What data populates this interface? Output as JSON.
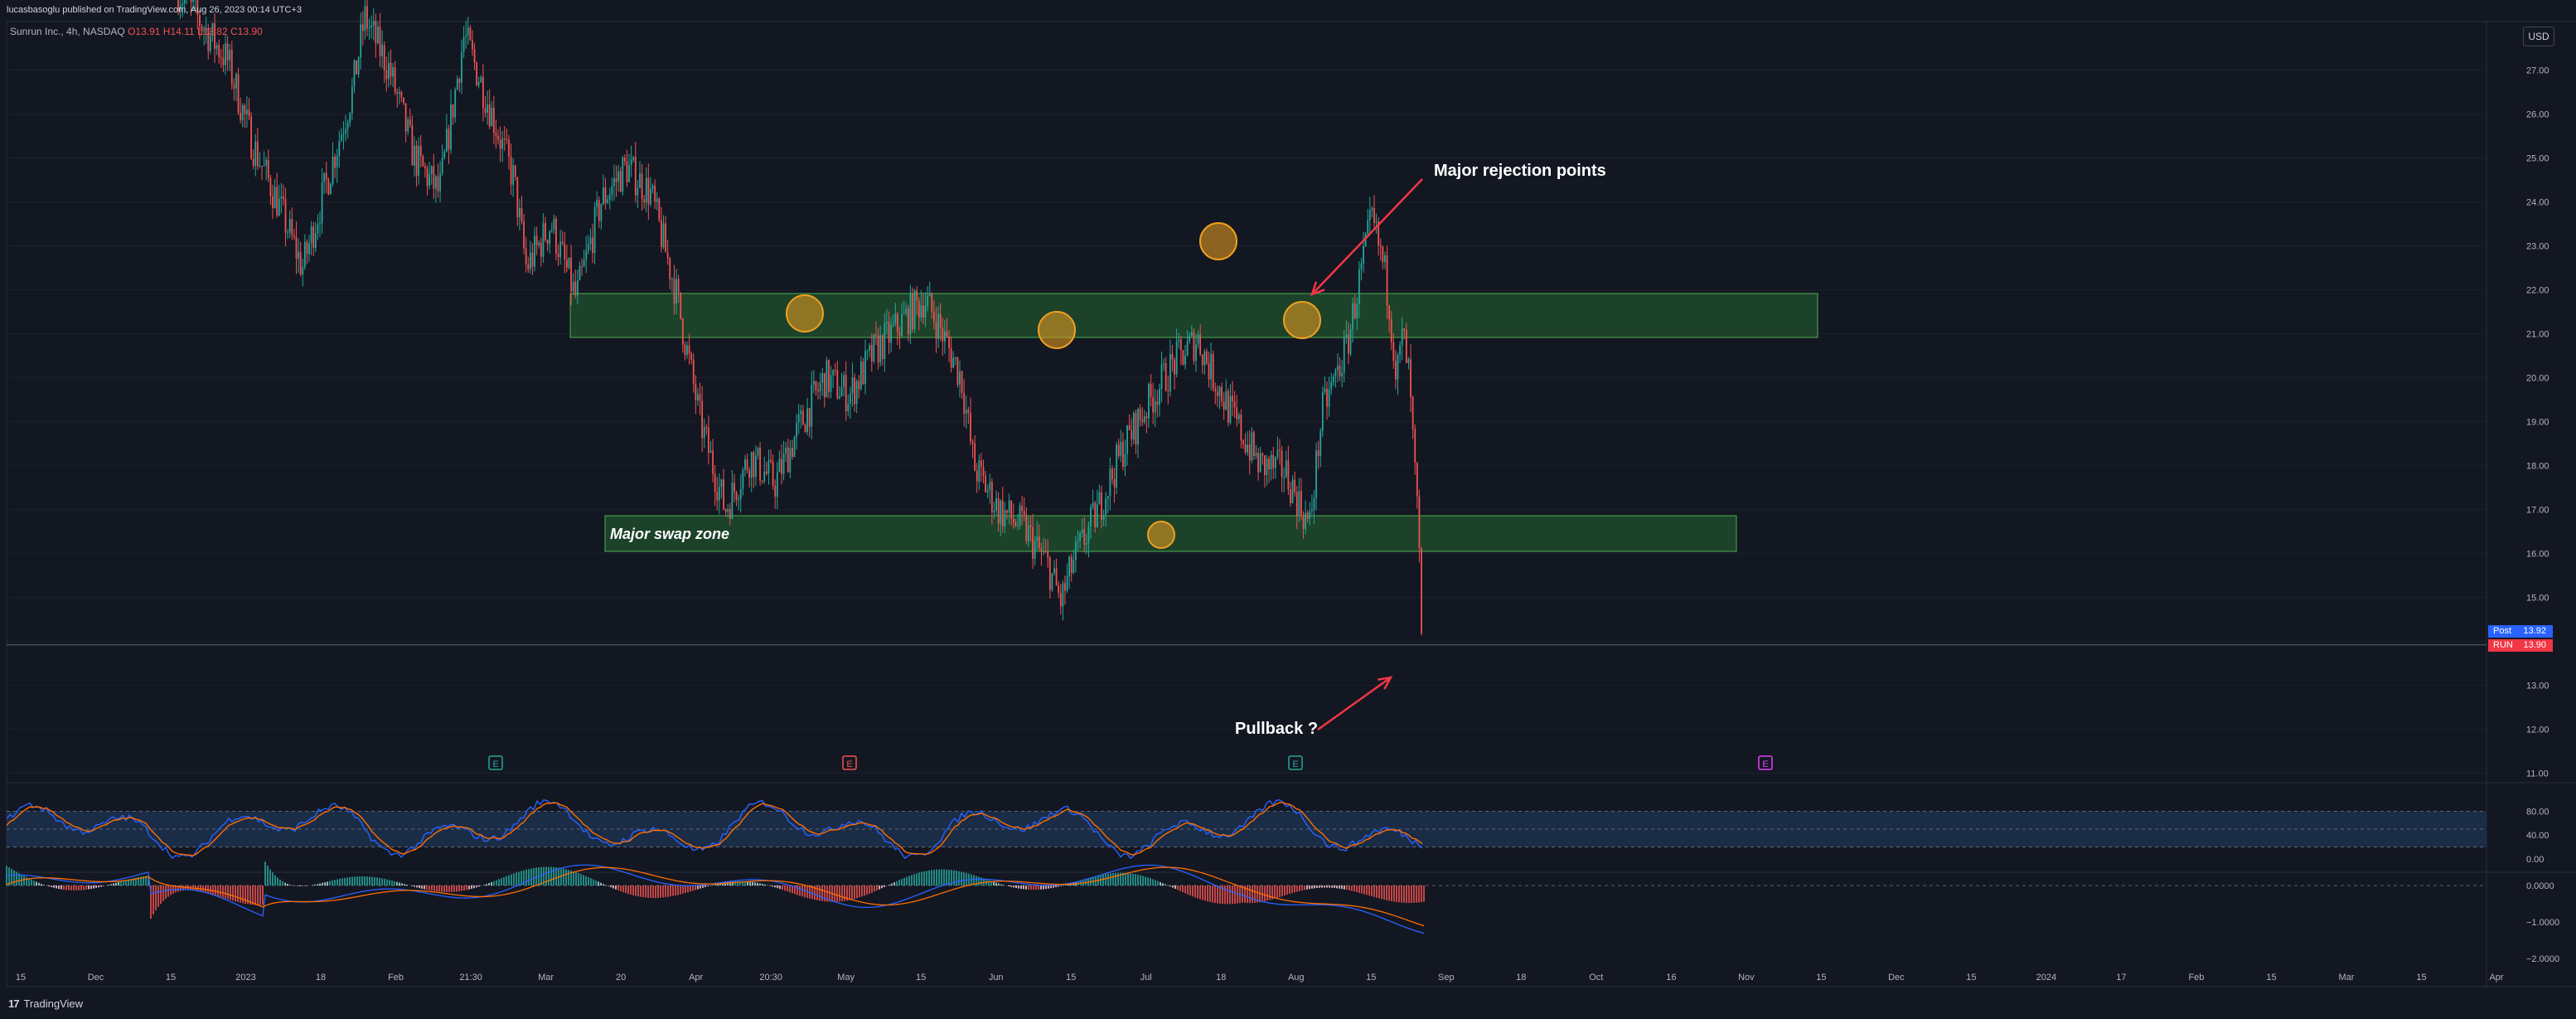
{
  "header": {
    "published": "lucasbasoglu published on TradingView.com, Aug 26, 2023 00:14 UTC+3",
    "symbol": "Sunrun Inc., 4h, NASDAQ",
    "ohlc": {
      "o": "O13.91",
      "h": "H14.11",
      "l": "L13.82",
      "c": "C13.90"
    }
  },
  "footer": {
    "brand": "TradingView",
    "brand_mark": "17"
  },
  "currency_button": "USD",
  "price_tags": {
    "post": {
      "label": "Post",
      "value": "13.92",
      "color": "#2962ff"
    },
    "last": {
      "label": "RUN",
      "value": "13.90",
      "color": "#f23645"
    }
  },
  "colors": {
    "background": "#131722",
    "up": "#26a69a",
    "down": "#ef5350",
    "zone_fill": "#1f4a2a",
    "zone_border": "#4caf50",
    "circle": "#f0a020",
    "arrow": "#f23645",
    "stoch_k": "#2962ff",
    "stoch_d": "#ff6d00"
  },
  "chart_data": [
    {
      "type": "candlestick",
      "timeframe": "4h",
      "price_axis": {
        "ticks": [
          27,
          26,
          25,
          24,
          23,
          22,
          21,
          20,
          19,
          18,
          17,
          16,
          15,
          14,
          13,
          12,
          11
        ],
        "tick_labels": [
          "27.00",
          "26.00",
          "25.00",
          "24.00",
          "23.00",
          "22.00",
          "21.00",
          "20.00",
          "19.00",
          "18.00",
          "17.00",
          "16.00",
          "15.00",
          "",
          "13.00",
          "12.00",
          "11.00"
        ]
      },
      "time_axis": [
        "15",
        "Dec",
        "15",
        "2023",
        "18",
        "Feb",
        "21:30",
        "Mar",
        "20",
        "Apr",
        "20:30",
        "May",
        "15",
        "Jun",
        "15",
        "Jul",
        "18",
        "Aug",
        "15",
        "Sep",
        "18",
        "Oct",
        "16",
        "Nov",
        "15",
        "Dec",
        "15",
        "2024",
        "17",
        "Feb",
        "15",
        "Mar",
        "15",
        "Apr"
      ],
      "path": [
        [
          0,
          28.8
        ],
        [
          0.02,
          28.0
        ],
        [
          0.04,
          27.2
        ],
        [
          0.06,
          25.3
        ],
        [
          0.08,
          24.0
        ],
        [
          0.1,
          22.5
        ],
        [
          0.12,
          24.5
        ],
        [
          0.14,
          26.5
        ],
        [
          0.15,
          28.2
        ],
        [
          0.17,
          27.0
        ],
        [
          0.19,
          25.0
        ],
        [
          0.21,
          24.2
        ],
        [
          0.23,
          27.8
        ],
        [
          0.25,
          26.2
        ],
        [
          0.27,
          24.5
        ],
        [
          0.28,
          22.5
        ],
        [
          0.3,
          23.5
        ],
        [
          0.32,
          21.8
        ],
        [
          0.34,
          24.0
        ],
        [
          0.36,
          24.8
        ],
        [
          0.38,
          24.2
        ],
        [
          0.4,
          22.0
        ],
        [
          0.42,
          19.0
        ],
        [
          0.44,
          17.0
        ],
        [
          0.46,
          18.2
        ],
        [
          0.48,
          17.6
        ],
        [
          0.5,
          18.9
        ],
        [
          0.52,
          20.0
        ],
        [
          0.54,
          19.6
        ],
        [
          0.56,
          20.6
        ],
        [
          0.58,
          21.2
        ],
        [
          0.6,
          21.8
        ],
        [
          0.61,
          21.3
        ],
        [
          0.63,
          20.0
        ],
        [
          0.64,
          18.0
        ],
        [
          0.66,
          17.0
        ],
        [
          0.68,
          16.6
        ],
        [
          0.7,
          15.7
        ],
        [
          0.71,
          14.9
        ],
        [
          0.72,
          15.8
        ],
        [
          0.74,
          17.0
        ],
        [
          0.76,
          18.4
        ],
        [
          0.78,
          19.4
        ],
        [
          0.8,
          20.3
        ],
        [
          0.82,
          20.9
        ],
        [
          0.83,
          20.2
        ],
        [
          0.85,
          19.0
        ],
        [
          0.87,
          18.0
        ],
        [
          0.89,
          17.9
        ],
        [
          0.91,
          16.6
        ],
        [
          0.92,
          19.2
        ],
        [
          0.94,
          20.7
        ],
        [
          0.95,
          22.2
        ],
        [
          0.96,
          23.6
        ],
        [
          0.97,
          22.5
        ],
        [
          0.975,
          21.5
        ],
        [
          0.98,
          20.0
        ],
        [
          0.985,
          21.0
        ],
        [
          0.99,
          20.0
        ],
        [
          0.993,
          18.6
        ],
        [
          0.996,
          17.2
        ],
        [
          0.998,
          16.2
        ],
        [
          1.0,
          13.9
        ]
      ]
    },
    {
      "type": "line",
      "indicator": "Stochastic RSI",
      "ticks": [
        "80.00",
        "40.00",
        "0.00"
      ],
      "levels": [
        80,
        20
      ]
    },
    {
      "type": "histogram",
      "indicator": "MACD",
      "ticks": [
        "0.0000",
        "−1.0000",
        "−2.0000"
      ]
    }
  ],
  "annotations": {
    "rejection": "Major rejection points",
    "swap_zone": "Major swap zone",
    "pullback": "Pullback ?",
    "event_markers": [
      {
        "letter": "E",
        "color": "#26a69a"
      },
      {
        "letter": "E",
        "color": "#ef5350"
      },
      {
        "letter": "E",
        "color": "#26a69a"
      },
      {
        "letter": "E",
        "color": "#e040fb"
      }
    ]
  }
}
